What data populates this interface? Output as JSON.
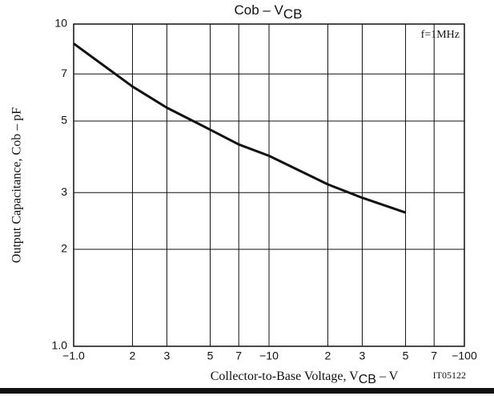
{
  "chart_data": {
    "type": "line",
    "title_parts": [
      "Cob  –  V",
      "CB"
    ],
    "xlabel_parts": [
      "Collector-to-Base Voltage, V",
      "CB",
      "  –  V"
    ],
    "ylabel": "Output Capacitance, Cob  –  pF",
    "annotations": [
      "f=1MHz",
      "IT05122"
    ],
    "xscale": "log",
    "yscale": "log",
    "grid": true,
    "xlim": [
      1,
      100
    ],
    "ylim": [
      1,
      10
    ],
    "xticks": [
      {
        "value": 1,
        "label": "−1.0"
      },
      2,
      3,
      5,
      7,
      {
        "value": 10,
        "label": "−10"
      },
      {
        "value": 20,
        "label": "2"
      },
      {
        "value": 30,
        "label": "3"
      },
      {
        "value": 50,
        "label": "5"
      },
      {
        "value": 70,
        "label": "7"
      },
      {
        "value": 100,
        "label": "−100"
      }
    ],
    "yticks": [
      {
        "value": 1,
        "label": "1.0"
      },
      2,
      3,
      5,
      7,
      10
    ],
    "series": [
      {
        "color": "#111111",
        "x": [
          1,
          2,
          3,
          5,
          7,
          10,
          20,
          30,
          50
        ],
        "values": [
          8.7,
          6.4,
          5.5,
          4.7,
          4.23,
          3.9,
          3.18,
          2.89,
          2.6
        ]
      }
    ]
  }
}
